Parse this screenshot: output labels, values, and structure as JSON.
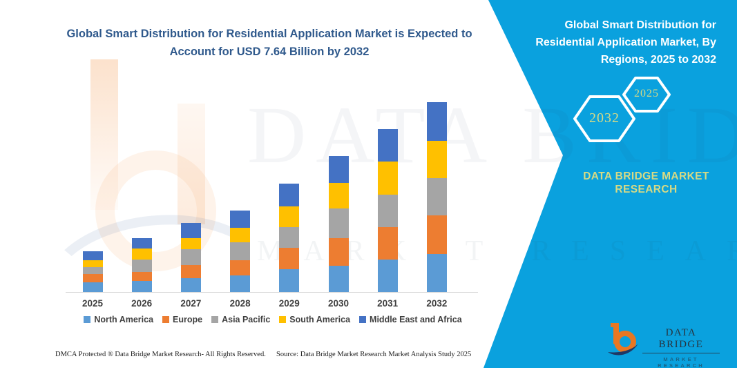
{
  "title": {
    "line1": "Global Smart Distribution for Residential Application Market is Expected to",
    "line2": "Account for USD 7.64 Billion by 2032"
  },
  "right_panel": {
    "title": "Global Smart Distribution for Residential Application Market, By Regions, 2025 to 2032",
    "hexagon_back_label": "2032",
    "hexagon_front_label": "2025",
    "brand_text": "DATA BRIDGE MARKET RESEARCH",
    "background_color": "#0AA1DE",
    "accent_text_color": "#D6DA85"
  },
  "logo": {
    "name": "DATA BRIDGE",
    "subtitle": "MARKET RESEARCH"
  },
  "watermark": {
    "line1": "DATA BRIDGE",
    "line2": "MARKET RESEARCH"
  },
  "footer": {
    "left": "DMCA Protected ® Data Bridge Market Research-  All Rights Reserved.",
    "right": "Source: Data Bridge Market Research  Market Analysis Study 2025"
  },
  "chart_data": {
    "type": "bar",
    "stacked": true,
    "unit": "USD Billion",
    "title": "Global Smart Distribution for Residential Application Market, By Regions, 2025 to 2032",
    "xlabel": "",
    "ylabel": "",
    "ylim": [
      0,
      8
    ],
    "grid": false,
    "y_axis_visible": false,
    "legend_position": "bottom",
    "categories": [
      "2025",
      "2026",
      "2027",
      "2028",
      "2029",
      "2030",
      "2031",
      "2032"
    ],
    "series": [
      {
        "name": "North America",
        "color": "#5B9BD5",
        "values": [
          0.38,
          0.45,
          0.55,
          0.66,
          0.93,
          1.06,
          1.3,
          1.52
        ]
      },
      {
        "name": "Europe",
        "color": "#ED7D31",
        "values": [
          0.35,
          0.37,
          0.53,
          0.63,
          0.85,
          1.11,
          1.32,
          1.58
        ]
      },
      {
        "name": "Asia Pacific",
        "color": "#A5A5A5",
        "values": [
          0.28,
          0.5,
          0.65,
          0.71,
          0.83,
          1.19,
          1.3,
          1.48
        ]
      },
      {
        "name": "South America",
        "color": "#FFC000",
        "values": [
          0.28,
          0.44,
          0.44,
          0.6,
          0.85,
          1.04,
          1.33,
          1.51
        ]
      },
      {
        "name": "Middle East and Africa",
        "color": "#4472C4",
        "values": [
          0.36,
          0.42,
          0.6,
          0.68,
          0.91,
          1.07,
          1.32,
          1.55
        ]
      }
    ],
    "totals": [
      1.65,
      2.18,
      2.77,
      3.28,
      4.37,
      5.47,
      6.57,
      7.64
    ]
  }
}
